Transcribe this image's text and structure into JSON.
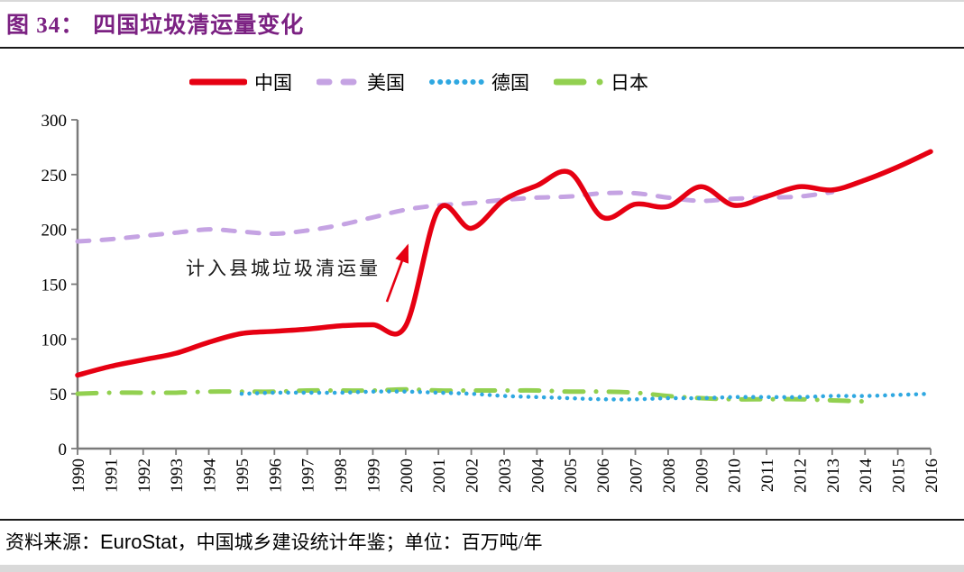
{
  "header": {
    "figure_prefix": "图 34：",
    "figure_title": "四国垃圾清运量变化",
    "accent_color": "#7b2182"
  },
  "chart_data": {
    "type": "line",
    "title": "四国垃圾清运量变化",
    "xlabel": "",
    "ylabel": "",
    "ylim": [
      0,
      300
    ],
    "ytick_step": 50,
    "ytick_labels": [
      "0",
      "50",
      "100",
      "150",
      "200",
      "250",
      "300"
    ],
    "x_categories": [
      "1990",
      "1991",
      "1992",
      "1993",
      "1994",
      "1995",
      "1996",
      "1997",
      "1998",
      "1999",
      "2000",
      "2001",
      "2002",
      "2003",
      "2004",
      "2005",
      "2006",
      "2007",
      "2008",
      "2009",
      "2010",
      "2011",
      "2012",
      "2013",
      "2014",
      "2015",
      "2016"
    ],
    "grid": false,
    "legend_position": "top",
    "axis_color": "#7a7a7a",
    "series": [
      {
        "name": "中国",
        "color": "#e60012",
        "dash": "solid",
        "start_year": 1990,
        "values": [
          67,
          75,
          81,
          87,
          97,
          105,
          107,
          109,
          112,
          113,
          112,
          218,
          201,
          227,
          240,
          252,
          211,
          223,
          221,
          239,
          222,
          230,
          239,
          236,
          245,
          257,
          271
        ]
      },
      {
        "name": "美国",
        "color": "#c5a3e3",
        "dash": "dashed",
        "start_year": 1990,
        "values": [
          189,
          191,
          194,
          197,
          200,
          198,
          196,
          199,
          204,
          211,
          218,
          222,
          224,
          227,
          229,
          230,
          233,
          233,
          229,
          226,
          228,
          229,
          230,
          234
        ]
      },
      {
        "name": "德国",
        "color": "#2fa8e1",
        "dash": "dotted",
        "start_year": 1995,
        "values": [
          50,
          51,
          51,
          51,
          52,
          52,
          51,
          50,
          48,
          47,
          46,
          45,
          45,
          46,
          46,
          47,
          47,
          47,
          48,
          48,
          49,
          50
        ]
      },
      {
        "name": "日本",
        "color": "#92d050",
        "dash": "dashdot",
        "start_year": 1990,
        "values": [
          50,
          51,
          51,
          51,
          52,
          52,
          52,
          53,
          53,
          53,
          54,
          53,
          53,
          53,
          53,
          52,
          52,
          51,
          48,
          46,
          45,
          45,
          45,
          44,
          43
        ]
      }
    ],
    "annotation": {
      "text": "计入县城垃圾清运量"
    }
  },
  "footer": {
    "source_label": "资料来源：",
    "source_name": "EuroStat",
    "source_rest": "，中国城乡建设统计年鉴；单位：百万吨/年"
  }
}
